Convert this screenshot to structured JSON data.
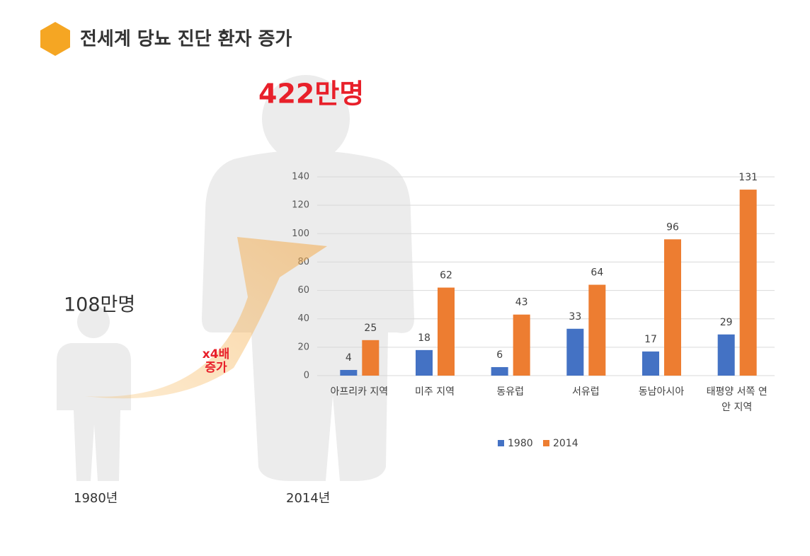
{
  "header": {
    "title": "전세계 당뇨 진단 환자 증가"
  },
  "annotations": {
    "total_2014": "422만명",
    "total_1980": "108만명",
    "growth": "x4배 증가",
    "year_1980": "1980년",
    "year_2014": "2014년"
  },
  "chart_data": {
    "type": "bar",
    "categories": [
      "아프리카 지역",
      "미주 지역",
      "동유럽",
      "서유럽",
      "동남아시아",
      "태평양 서쪽 연안 지역"
    ],
    "series": [
      {
        "name": "1980",
        "color": "#4472c4",
        "values": [
          4,
          18,
          6,
          33,
          17,
          29
        ]
      },
      {
        "name": "2014",
        "color": "#ed7d31",
        "values": [
          25,
          62,
          43,
          64,
          96,
          131
        ]
      }
    ],
    "ylim": [
      0,
      140
    ],
    "yticks": [
      0,
      20,
      40,
      60,
      80,
      100,
      120,
      140
    ],
    "grid": true,
    "legend": "bottom"
  }
}
